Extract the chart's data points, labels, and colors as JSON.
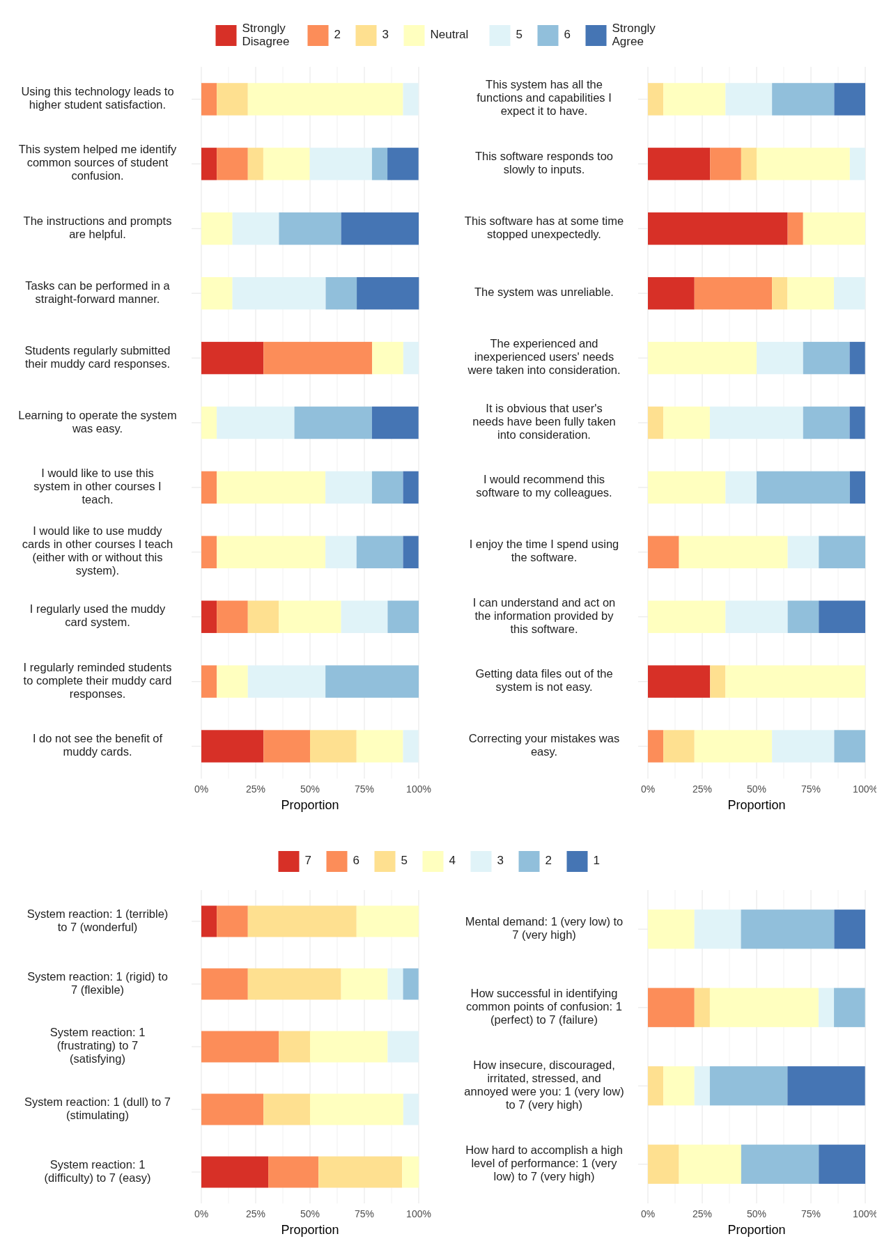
{
  "chart_data": [
    {
      "type": "bar",
      "orientation": "horizontal",
      "stacked": true,
      "legend": "top",
      "grid": "x",
      "xlabel": "Proportion",
      "categories": [
        "Using this technology leads to higher student satisfaction.",
        "This system helped me identify common sources of student confusion.",
        "The instructions and prompts are helpful.",
        "Tasks can be performed in a straight-forward manner.",
        "Students regularly submitted their muddy card responses.",
        "Learning to operate the system was easy.",
        "I would like to use this system in other courses I teach.",
        "I would like to use muddy cards in other courses I teach (either with or without this system).",
        "I regularly used the muddy card system.",
        "I regularly reminded students to complete their muddy card responses.",
        "I do not see the benefit of muddy cards."
      ],
      "xlim": [
        0,
        100
      ],
      "xticks": [
        {
          "value": 0,
          "label": "0%"
        },
        {
          "value": 12.5,
          "label": null
        },
        {
          "value": 25,
          "label": "25%"
        },
        {
          "value": 37.5,
          "label": null
        },
        {
          "value": 50,
          "label": "50%"
        },
        {
          "value": 62.5,
          "label": null
        },
        {
          "value": 75,
          "label": "75%"
        },
        {
          "value": 87.5,
          "label": null
        },
        {
          "value": 100,
          "label": "100%"
        }
      ],
      "series": [
        {
          "name": "Strongly Disagree",
          "color": "#d73027",
          "values": [
            0,
            7.1,
            0,
            0,
            28.6,
            0,
            0,
            0,
            7.1,
            0,
            28.6
          ]
        },
        {
          "name": "2",
          "color": "#fc8d59",
          "values": [
            7.1,
            14.3,
            0,
            0,
            50,
            0,
            7.1,
            7.1,
            14.3,
            7.1,
            21.4
          ]
        },
        {
          "name": "3",
          "color": "#fee090",
          "values": [
            14.3,
            7.1,
            0,
            0,
            0,
            0,
            0,
            0,
            14.3,
            0,
            21.4
          ]
        },
        {
          "name": "Neutral",
          "color": "#ffffbf",
          "values": [
            71.4,
            21.4,
            14.3,
            14.3,
            14.3,
            7.1,
            50,
            50,
            28.6,
            14.3,
            21.4
          ]
        },
        {
          "name": "5",
          "color": "#e0f3f8",
          "values": [
            7.1,
            28.6,
            21.4,
            42.9,
            7.1,
            35.7,
            21.4,
            14.3,
            21.4,
            35.7,
            7.1
          ]
        },
        {
          "name": "6",
          "color": "#91bfdb",
          "values": [
            0,
            7.1,
            28.6,
            14.3,
            0,
            35.7,
            14.3,
            21.4,
            14.3,
            42.9,
            0
          ]
        },
        {
          "name": "Strongly Agree",
          "color": "#4575b4",
          "values": [
            0,
            14.3,
            35.7,
            28.6,
            0,
            21.4,
            7.1,
            7.1,
            0,
            0,
            0
          ]
        }
      ]
    },
    {
      "type": "bar",
      "orientation": "horizontal",
      "stacked": true,
      "grid": "x",
      "xlabel": "Proportion",
      "categories": [
        "This system has all the functions and capabilities I expect it to have.",
        "This software responds too slowly to inputs.",
        "This software has at some time stopped unexpectedly.",
        "The system was unreliable.",
        "The experienced and inexperienced users' needs were taken into consideration.",
        "It is obvious that user's needs have been fully taken into consideration.",
        "I would recommend this software to my colleagues.",
        "I enjoy the time I spend using the software.",
        "I can understand and act on the information provided by this software.",
        "Getting data files out of the system is not easy.",
        "Correcting your mistakes was easy."
      ],
      "xlim": [
        0,
        100
      ],
      "xticks": [
        {
          "value": 0,
          "label": "0%"
        },
        {
          "value": 12.5,
          "label": null
        },
        {
          "value": 25,
          "label": "25%"
        },
        {
          "value": 37.5,
          "label": null
        },
        {
          "value": 50,
          "label": "50%"
        },
        {
          "value": 62.5,
          "label": null
        },
        {
          "value": 75,
          "label": "75%"
        },
        {
          "value": 87.5,
          "label": null
        },
        {
          "value": 100,
          "label": "100%"
        }
      ],
      "series": [
        {
          "color": "#d73027",
          "values": [
            0,
            28.6,
            64.3,
            21.4,
            0,
            0,
            0,
            0,
            0,
            28.6,
            0
          ]
        },
        {
          "color": "#fc8d59",
          "values": [
            0,
            14.3,
            7.1,
            35.7,
            0,
            0,
            0,
            14.3,
            0,
            0,
            7.1
          ]
        },
        {
          "color": "#fee090",
          "values": [
            7.1,
            7.1,
            0,
            7.1,
            0,
            7.1,
            0,
            0,
            0,
            7.1,
            14.3
          ]
        },
        {
          "color": "#ffffbf",
          "values": [
            28.6,
            42.9,
            28.6,
            21.4,
            50,
            21.4,
            35.7,
            50,
            35.7,
            64.3,
            35.7
          ]
        },
        {
          "color": "#e0f3f8",
          "values": [
            21.4,
            7.1,
            0,
            14.3,
            21.4,
            42.9,
            14.3,
            14.3,
            28.6,
            0,
            28.6
          ]
        },
        {
          "color": "#91bfdb",
          "values": [
            28.6,
            0,
            0,
            0,
            21.4,
            21.4,
            42.9,
            21.4,
            14.3,
            0,
            14.3
          ]
        },
        {
          "color": "#4575b4",
          "values": [
            14.3,
            0,
            0,
            0,
            7.1,
            7.1,
            7.1,
            0,
            21.4,
            0,
            0
          ]
        }
      ]
    },
    {
      "type": "bar",
      "orientation": "horizontal",
      "stacked": true,
      "legend": "top",
      "grid": "x",
      "xlabel": "Proportion",
      "categories": [
        "System reaction: 1 (terrible) to 7 (wonderful)",
        "System reaction: 1 (rigid) to 7 (flexible)",
        "System reaction: 1 (frustrating) to 7 (satisfying)",
        "System reaction: 1 (dull) to 7 (stimulating)",
        "System reaction: 1 (difficulty) to 7 (easy)"
      ],
      "xlim": [
        0,
        100
      ],
      "xticks": [
        {
          "value": 0,
          "label": "0%"
        },
        {
          "value": 12.5,
          "label": null
        },
        {
          "value": 25,
          "label": "25%"
        },
        {
          "value": 37.5,
          "label": null
        },
        {
          "value": 50,
          "label": "50%"
        },
        {
          "value": 62.5,
          "label": null
        },
        {
          "value": 75,
          "label": "75%"
        },
        {
          "value": 87.5,
          "label": null
        },
        {
          "value": 100,
          "label": "100%"
        }
      ],
      "series": [
        {
          "name": "7",
          "color": "#d73027",
          "values": [
            7.1,
            0,
            0,
            0,
            30.8
          ]
        },
        {
          "name": "6",
          "color": "#fc8d59",
          "values": [
            14.3,
            21.4,
            35.7,
            28.6,
            23.1
          ]
        },
        {
          "name": "5",
          "color": "#fee090",
          "values": [
            50,
            42.9,
            14.3,
            21.4,
            38.5
          ]
        },
        {
          "name": "4",
          "color": "#ffffbf",
          "values": [
            28.6,
            21.4,
            35.7,
            42.9,
            7.7
          ]
        },
        {
          "name": "3",
          "color": "#e0f3f8",
          "values": [
            0,
            7.1,
            14.3,
            7.1,
            0
          ]
        },
        {
          "name": "2",
          "color": "#91bfdb",
          "values": [
            0,
            7.1,
            0,
            0,
            0
          ]
        },
        {
          "name": "1",
          "color": "#4575b4",
          "values": [
            0,
            0,
            0,
            0,
            0
          ]
        }
      ]
    },
    {
      "type": "bar",
      "orientation": "horizontal",
      "stacked": true,
      "grid": "x",
      "xlabel": "Proportion",
      "categories": [
        "Mental demand: 1 (very low) to 7 (very high)",
        "How successful in identifying common points of confusion: 1 (perfect) to 7 (failure)",
        "How insecure, discouraged, irritated, stressed, and annoyed were you: 1 (very low) to 7 (very high)",
        "How hard to accomplish a high level of performance: 1 (very low) to 7 (very high)"
      ],
      "xlim": [
        0,
        100
      ],
      "xticks": [
        {
          "value": 0,
          "label": "0%"
        },
        {
          "value": 12.5,
          "label": null
        },
        {
          "value": 25,
          "label": "25%"
        },
        {
          "value": 37.5,
          "label": null
        },
        {
          "value": 50,
          "label": "50%"
        },
        {
          "value": 62.5,
          "label": null
        },
        {
          "value": 75,
          "label": "75%"
        },
        {
          "value": 87.5,
          "label": null
        },
        {
          "value": 100,
          "label": "100%"
        }
      ],
      "series": [
        {
          "color": "#d73027",
          "values": [
            0,
            0,
            0,
            0
          ]
        },
        {
          "color": "#fc8d59",
          "values": [
            0,
            21.4,
            0,
            0
          ]
        },
        {
          "color": "#fee090",
          "values": [
            0,
            7.1,
            7.1,
            14.3
          ]
        },
        {
          "color": "#ffffbf",
          "values": [
            21.4,
            50,
            14.3,
            28.6
          ]
        },
        {
          "color": "#e0f3f8",
          "values": [
            21.4,
            7.1,
            7.1,
            0
          ]
        },
        {
          "color": "#91bfdb",
          "values": [
            42.9,
            14.3,
            35.7,
            35.7
          ]
        },
        {
          "color": "#4575b4",
          "values": [
            14.3,
            0,
            35.7,
            21.4
          ]
        }
      ]
    }
  ]
}
